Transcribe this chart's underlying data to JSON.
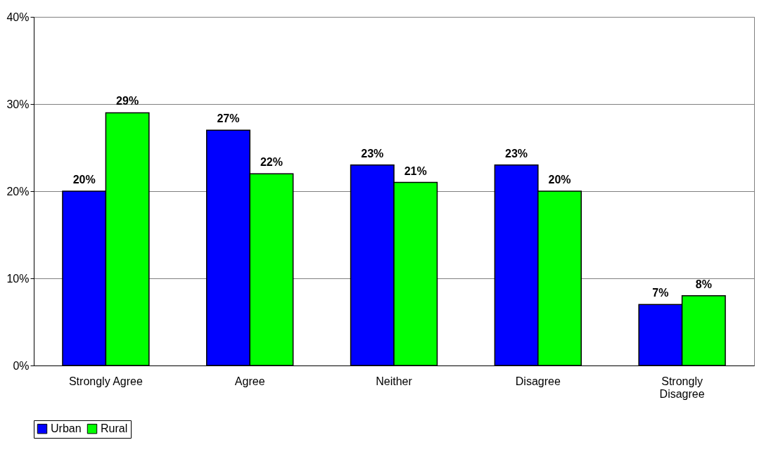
{
  "chart_data": {
    "type": "bar",
    "categories": [
      "Strongly Agree",
      "Agree",
      "Neither",
      "Disagree",
      "Strongly Disagree"
    ],
    "series": [
      {
        "name": "Urban",
        "color": "#0000ff",
        "values": [
          20,
          27,
          23,
          23,
          7
        ],
        "value_labels": [
          "20%",
          "27%",
          "23%",
          "23%",
          "7%"
        ]
      },
      {
        "name": "Rural",
        "color": "#00ff00",
        "values": [
          29,
          22,
          21,
          20,
          8
        ],
        "value_labels": [
          "29%",
          "22%",
          "21%",
          "20%",
          "8%"
        ]
      }
    ],
    "ylim": [
      0,
      40
    ],
    "yticks": [
      {
        "value": 0,
        "label": "0%"
      },
      {
        "value": 10,
        "label": "10%"
      },
      {
        "value": 20,
        "label": "20%"
      },
      {
        "value": 30,
        "label": "30%"
      },
      {
        "value": 40,
        "label": "40%"
      }
    ],
    "grid": "y",
    "legend": "bottom"
  }
}
